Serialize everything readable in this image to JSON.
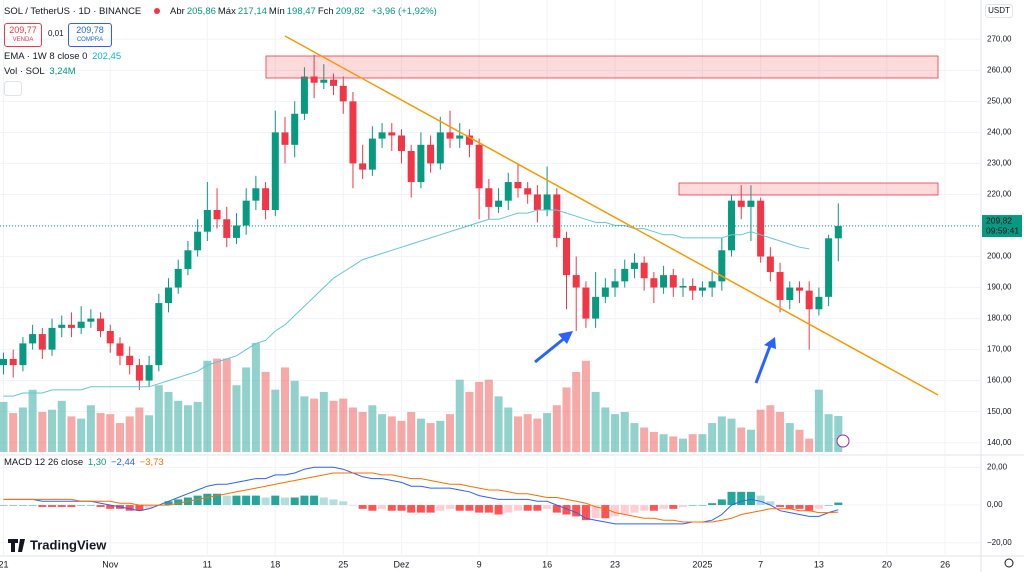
{
  "chart_data": [
    {
      "type": "candlestick",
      "title": "SOL / TetherUS · 1D · BINANCE",
      "currency": "USDT",
      "ohlc_legend": [
        {
          "name": "Abr",
          "value": "205,86"
        },
        {
          "name": "Máx",
          "value": "217,14"
        },
        {
          "name": "Mín",
          "value": "198,47"
        },
        {
          "name": "Fch",
          "value": "209,82"
        }
      ],
      "change": "+3,96 (+1,92%)",
      "quote": {
        "sell": "209,77",
        "sell_label": "VENDA",
        "spread": "0,01",
        "buy": "209,78",
        "buy_label": "COMPRA"
      },
      "last_price_label": "209,82",
      "countdown": "09:59:41",
      "up_color": "#089981",
      "down_color": "#f23645",
      "open": [
        165,
        167,
        165,
        172,
        175,
        170,
        177,
        178,
        177,
        179,
        180,
        176,
        172,
        168,
        165,
        160,
        165,
        185,
        190,
        196,
        202,
        208,
        215,
        212,
        206,
        210,
        218,
        222,
        215,
        240,
        236,
        246,
        258,
        256,
        257,
        255,
        250,
        230,
        228,
        238,
        240,
        239,
        234,
        224,
        236,
        230,
        240,
        238,
        239,
        236,
        222,
        216,
        218,
        224,
        222,
        220,
        215,
        220,
        206,
        194,
        190,
        180,
        187,
        190,
        192,
        196,
        198,
        193,
        190,
        194,
        190,
        190.5,
        189,
        190,
        192,
        202,
        218,
        216,
        218,
        200,
        195,
        186,
        190,
        189,
        183,
        187,
        205.86
      ],
      "high": [
        169,
        170,
        174,
        178,
        177,
        180,
        181,
        182,
        184,
        183,
        182,
        178,
        174,
        171,
        167,
        168,
        188,
        193,
        199,
        205,
        212,
        224,
        222,
        216,
        214,
        222,
        226,
        224,
        247,
        245,
        250,
        261,
        265,
        262,
        259,
        258,
        253,
        236,
        242,
        243,
        243,
        241,
        236,
        240,
        239,
        245,
        247,
        243,
        241,
        238,
        225,
        222,
        227,
        230,
        224,
        223,
        229,
        222,
        208,
        200,
        192,
        195,
        193,
        196,
        199,
        201,
        200,
        195,
        197,
        196,
        193,
        193,
        192,
        195,
        206,
        220,
        223,
        223,
        219,
        203,
        198,
        192,
        192,
        192,
        190,
        207,
        217.14
      ],
      "low": [
        162,
        161,
        163,
        170,
        167,
        168,
        174,
        174,
        175,
        177,
        174,
        169,
        165,
        162,
        157,
        158,
        163,
        182,
        188,
        194,
        200,
        205,
        209,
        203,
        204,
        207,
        215,
        212,
        213,
        230,
        232,
        244,
        251,
        254,
        252,
        246,
        222,
        225,
        226,
        235,
        234,
        230,
        219,
        222,
        227,
        228,
        235,
        235,
        232,
        212,
        212,
        214,
        215,
        219,
        217,
        211,
        213,
        203,
        183,
        176,
        177,
        177,
        185,
        187,
        190,
        193,
        189,
        185,
        188,
        187,
        187,
        186,
        187,
        187,
        189,
        200,
        212,
        205,
        198,
        192,
        182,
        183,
        185,
        170,
        181,
        184,
        198.47
      ],
      "close": [
        167,
        165,
        172,
        175,
        170,
        177,
        178,
        177,
        179,
        180,
        176,
        172,
        168,
        165,
        160,
        165,
        185,
        190,
        196,
        202,
        208,
        215,
        212,
        206,
        210,
        218,
        222,
        215,
        240,
        236,
        246,
        258,
        256,
        257,
        255,
        250,
        230,
        228,
        238,
        240,
        239,
        234,
        224,
        236,
        230,
        240,
        238,
        239,
        236,
        222,
        216,
        218,
        224,
        222,
        220,
        215,
        220,
        206,
        194,
        190,
        180,
        187,
        190,
        192,
        196,
        198,
        193,
        190,
        194,
        190,
        190.5,
        189,
        190,
        192,
        202,
        218,
        216,
        218,
        200,
        195,
        186,
        190,
        189,
        183,
        187,
        205.86,
        209.82
      ],
      "volume": {
        "name": "Vol · SOL",
        "value_label": "3,24M",
        "ylim": [
          0,
          16
        ],
        "values": [
          4.5,
          3.5,
          4.0,
          5.6,
          3.6,
          3.8,
          4.6,
          3.2,
          3.0,
          4.2,
          3.5,
          3.4,
          2.6,
          3.2,
          4.0,
          3.3,
          6.0,
          5.4,
          4.6,
          4.2,
          4.5,
          8.2,
          8.4,
          8.4,
          6.0,
          7.6,
          9.8,
          7.2,
          5.6,
          7.6,
          6.4,
          5.0,
          4.8,
          5.4,
          4.6,
          4.8,
          4.0,
          3.6,
          4.2,
          3.4,
          3.2,
          2.8,
          3.6,
          3.0,
          2.6,
          2.8,
          3.4,
          6.5,
          5.4,
          6.3,
          6.5,
          5.0,
          4.0,
          3.2,
          3.4,
          3.0,
          3.5,
          4.2,
          5.8,
          7.2,
          8.2,
          5.4,
          4.0,
          3.4,
          3.6,
          2.6,
          2.2,
          1.8,
          1.6,
          1.4,
          1.2,
          1.6,
          1.6,
          2.6,
          3.2,
          3.0,
          2.2,
          2.0,
          3.8,
          4.2,
          3.6,
          2.6,
          2.0,
          1.2,
          5.6,
          3.4,
          3.24
        ]
      },
      "ema": {
        "name": "EMA · 1W 8 close 0",
        "value_label": "202,45",
        "color": "#5fc9d6",
        "values": [
          155,
          155,
          156,
          156,
          156,
          157,
          157,
          157,
          157,
          158,
          158,
          158,
          158,
          158,
          158,
          158,
          159,
          160,
          161,
          162,
          163,
          165,
          166,
          167,
          168,
          170,
          172,
          173,
          176,
          178,
          181,
          184,
          187,
          190,
          193,
          195,
          197,
          199,
          200,
          201,
          202,
          203,
          204,
          205,
          206,
          207,
          208,
          209,
          210,
          211,
          212,
          212,
          213,
          214,
          214,
          215,
          215,
          215,
          214,
          213,
          212,
          211,
          211,
          210,
          210,
          209,
          209,
          208,
          207,
          207,
          206,
          206,
          206,
          206,
          206,
          207,
          207,
          208,
          207,
          206,
          205,
          204,
          203,
          202.45,
          null,
          null,
          null
        ]
      },
      "ylim": [
        137,
        273
      ],
      "yticks": [
        {
          "value": 140,
          "label": "140,00"
        },
        {
          "value": 150,
          "label": "150,00"
        },
        {
          "value": 160,
          "label": "160,00"
        },
        {
          "value": 170,
          "label": "170,00"
        },
        {
          "value": 180,
          "label": "180,00"
        },
        {
          "value": 190,
          "label": "190,00"
        },
        {
          "value": 200,
          "label": "200,00"
        },
        {
          "value": 210,
          "label": "210,00"
        },
        {
          "value": 220,
          "label": "220,00"
        },
        {
          "value": 230,
          "label": "230,00"
        },
        {
          "value": 240,
          "label": "240,00"
        },
        {
          "value": 250,
          "label": "250,00"
        },
        {
          "value": 260,
          "label": "260,00"
        },
        {
          "value": 270,
          "label": "270,00"
        }
      ],
      "xlim": [
        -0.36,
        100.7
      ],
      "xticks": [
        {
          "value": 0,
          "label": "21"
        },
        {
          "value": 11,
          "label": "Nov"
        },
        {
          "value": 21,
          "label": "11"
        },
        {
          "value": 28,
          "label": "18"
        },
        {
          "value": 35,
          "label": "25"
        },
        {
          "value": 41,
          "label": "Dez"
        },
        {
          "value": 49,
          "label": "9"
        },
        {
          "value": 56,
          "label": "16"
        },
        {
          "value": 63,
          "label": "23"
        },
        {
          "value": 72,
          "label": "2025"
        },
        {
          "value": 78,
          "label": "7"
        },
        {
          "value": 84,
          "label": "13"
        },
        {
          "value": 91,
          "label": "20"
        },
        {
          "value": 97,
          "label": "26"
        }
      ],
      "grid": true,
      "brand": "TradingView"
    },
    {
      "type": "line",
      "title": "MACD 12 26 close",
      "histogram": {
        "value_label": "1,30",
        "values": [
          0,
          0,
          0,
          0,
          -1,
          -1,
          -1,
          -1,
          0,
          0,
          -1,
          -2,
          -2,
          -3,
          -3,
          -2,
          0,
          2,
          3,
          4,
          5,
          6,
          6,
          5,
          5,
          5,
          5,
          4,
          5,
          4,
          4,
          5,
          5,
          4,
          3,
          2,
          0,
          -2,
          -3,
          -2,
          -3,
          -3,
          -4,
          -4,
          -4,
          -3,
          -2,
          -3,
          -3,
          -4,
          -4,
          -5,
          -4,
          -3,
          -3,
          -3,
          -2,
          -4,
          -5,
          -6,
          -8,
          -7,
          -7,
          -6,
          -5,
          -4,
          -3,
          -3,
          -2,
          -2,
          -1,
          0,
          0,
          1,
          3,
          7,
          7,
          7,
          5,
          2,
          -1,
          -2,
          -2,
          -3,
          -2,
          0,
          1.3
        ]
      },
      "series": [
        {
          "name": "MACD",
          "value_label": "−2,44",
          "color": "#2962ff",
          "values": [
            3,
            3,
            3,
            3,
            2,
            2,
            2,
            2,
            2,
            2,
            1,
            0,
            -1,
            -2,
            -3,
            -2,
            0,
            2,
            4,
            6,
            8,
            10,
            11,
            11,
            12,
            13,
            14,
            14,
            16,
            16,
            17,
            19,
            20,
            20,
            20,
            19,
            17,
            15,
            14,
            14,
            13,
            12,
            10,
            10,
            9,
            9,
            9,
            8,
            7,
            5,
            4,
            3,
            3,
            3,
            3,
            2,
            2,
            0,
            -2,
            -4,
            -7,
            -8,
            -9,
            -10,
            -10,
            -10,
            -10,
            -10,
            -10,
            -10,
            -10,
            -9,
            -9,
            -8,
            -5,
            0,
            2,
            3,
            2,
            0,
            -3,
            -4,
            -5,
            -6,
            -6,
            -4,
            -2.44
          ]
        },
        {
          "name": "Signal",
          "value_label": "−3,73",
          "color": "#ff6d00",
          "values": [
            3,
            3,
            3,
            3,
            3,
            3,
            3,
            3,
            2,
            2,
            2,
            2,
            1,
            1,
            0,
            0,
            0,
            0,
            1,
            2,
            3,
            4,
            5,
            6,
            7,
            8,
            9,
            10,
            11,
            12,
            13,
            14,
            15,
            16,
            17,
            17,
            17,
            17,
            17,
            16,
            16,
            15,
            14,
            14,
            13,
            12,
            11,
            11,
            10,
            9,
            8,
            8,
            7,
            6,
            6,
            5,
            4,
            4,
            3,
            2,
            1,
            -1,
            -2,
            -4,
            -5,
            -6,
            -7,
            -7,
            -8,
            -8,
            -9,
            -9,
            -9,
            -9,
            -8,
            -7,
            -5,
            -4,
            -3,
            -2,
            -2,
            -2,
            -3,
            -3,
            -4,
            -4,
            -3.73
          ]
        }
      ],
      "ylim": [
        -27,
        26
      ],
      "yticks": [
        {
          "value": 20,
          "label": "20,00"
        },
        {
          "value": 0,
          "label": "0,00"
        },
        {
          "value": -20,
          "label": "−20,00"
        }
      ]
    }
  ]
}
